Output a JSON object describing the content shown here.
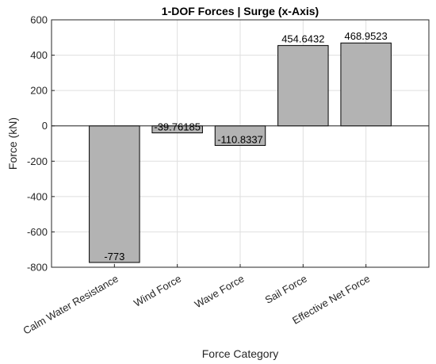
{
  "chart_data": {
    "type": "bar",
    "title": "1-DOF Forces | Surge (x-Axis)",
    "xlabel": "Force Category",
    "ylabel": "Force (kN)",
    "categories": [
      "Calm Water Resistance",
      "Wind Force",
      "Wave Force",
      "Sail Force",
      "Effective Net Force"
    ],
    "values": [
      -773,
      -39.76185,
      -110.8337,
      454.6432,
      468.9523
    ],
    "data_labels": [
      "-773",
      "-39.76185",
      "-110.8337",
      "454.6432",
      "468.9523"
    ],
    "ylim": [
      -800,
      600
    ],
    "yticks": [
      -800,
      -600,
      -400,
      -200,
      0,
      200,
      400,
      600
    ],
    "ytick_labels": [
      "-800",
      "-600",
      "-400",
      "-200",
      "0",
      "200",
      "400",
      "600"
    ],
    "grid": true,
    "colors": {
      "bar": "#b3b3b3",
      "bar_edge": "#000000",
      "grid": "#dfdfdf",
      "axis": "#262626"
    }
  }
}
